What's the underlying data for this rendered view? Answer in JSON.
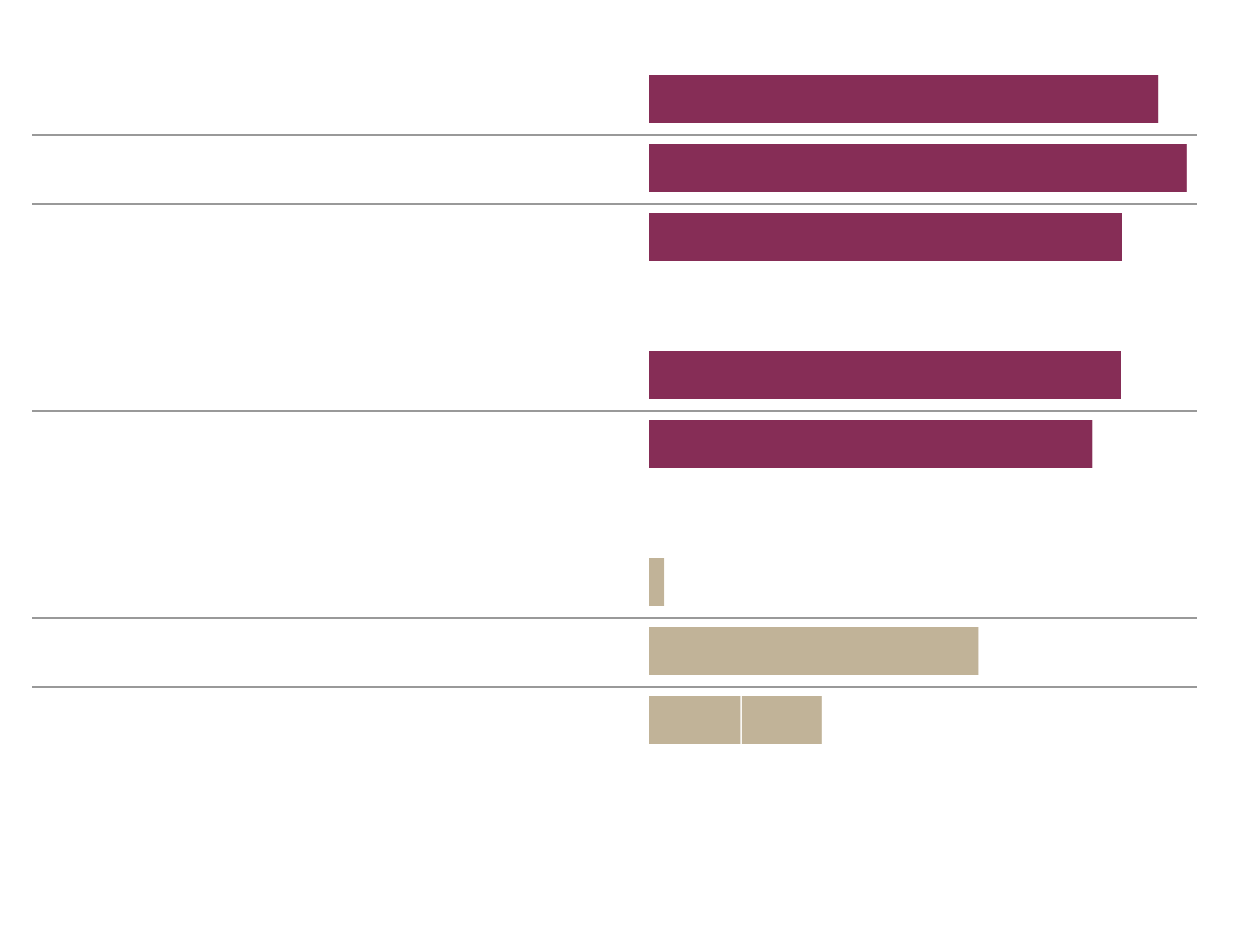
{
  "chart_data": {
    "type": "bar",
    "orientation": "horizontal",
    "stacked": true,
    "title": "",
    "xlabel": "",
    "ylabel": "",
    "grid": false,
    "legend": "none",
    "colors": {
      "primary": "#862d56",
      "secondary": "#c1b398",
      "divider": "#333333"
    },
    "xlim": [
      0,
      100
    ],
    "groups": [
      {
        "rows": [
          {
            "segments": [
              {
                "value": 94.3,
                "color": "#862d56"
              }
            ]
          }
        ]
      },
      {
        "rows": [
          {
            "segments": [
              {
                "value": 99.6,
                "color": "#862d56"
              }
            ]
          }
        ]
      },
      {
        "rows": [
          {
            "segments": [
              {
                "value": 87.6,
                "color": "#862d56"
              }
            ]
          },
          {
            "empty": true
          },
          {
            "segments": [
              {
                "value": 87.4,
                "color": "#862d56"
              }
            ]
          }
        ]
      },
      {
        "rows": [
          {
            "segments": [
              {
                "value": 82.1,
                "color": "#862d56"
              }
            ]
          },
          {
            "empty": true
          },
          {
            "segments": [
              {
                "value": 2.8,
                "color": "#c1b398"
              }
            ]
          }
        ]
      },
      {
        "rows": [
          {
            "segments": [
              {
                "value": 61.0,
                "color": "#c1b398"
              }
            ]
          }
        ]
      },
      {
        "rows": [
          {
            "segments": [
              {
                "value": 17.2,
                "color": "#c1b398"
              },
              {
                "value": 14.8,
                "color": "#c1b398"
              }
            ]
          }
        ]
      }
    ]
  }
}
